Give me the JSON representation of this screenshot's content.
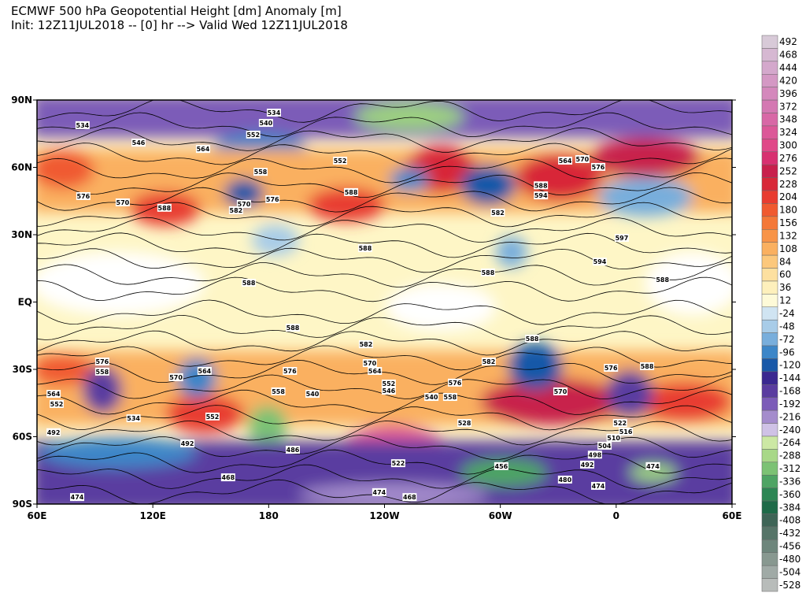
{
  "header": {
    "title": "ECMWF 500 hPa Geopotential Height [dm] Anomaly [m]",
    "subtitle": "Init: 12Z11JUL2018 -- [0] hr --> Valid Wed 12Z11JUL2018"
  },
  "map": {
    "xlim": [
      60,
      420
    ],
    "ylim": [
      -90,
      90
    ],
    "xticks": [
      {
        "value": 60,
        "label": "60E"
      },
      {
        "value": 120,
        "label": "120E"
      },
      180,
      {
        "value": 240,
        "label": "120W"
      },
      {
        "value": 300,
        "label": "60W"
      },
      {
        "value": 360,
        "label": "0"
      },
      {
        "value": 420,
        "label": "60E"
      }
    ],
    "yticks": [
      {
        "value": 90,
        "label": "90N"
      },
      {
        "value": 60,
        "label": "60N"
      },
      {
        "value": 30,
        "label": "30N"
      },
      {
        "value": 0,
        "label": "EQ"
      },
      {
        "value": -30,
        "label": "30S"
      },
      {
        "value": -60,
        "label": "60S"
      },
      {
        "value": -90,
        "label": "90S"
      }
    ],
    "contour_labels": [
      {
        "value": 534,
        "lon": 182.7,
        "lat": 84.4
      },
      {
        "value": 534,
        "lon": 83.6,
        "lat": 78.8
      },
      {
        "value": 540,
        "lon": 178.6,
        "lat": 79.8
      },
      {
        "value": 546,
        "lon": 112.6,
        "lat": 71
      },
      {
        "value": 552,
        "lon": 172,
        "lat": 74.6
      },
      {
        "value": 564,
        "lon": 146,
        "lat": 68.2
      },
      {
        "value": 552,
        "lon": 217,
        "lat": 63
      },
      {
        "value": 558,
        "lon": 175.8,
        "lat": 58
      },
      {
        "value": 588,
        "lon": 222.7,
        "lat": 49
      },
      {
        "value": 570,
        "lon": 167.2,
        "lat": 43.7
      },
      {
        "value": 576,
        "lon": 182,
        "lat": 45.8
      },
      {
        "value": 582,
        "lon": 163.1,
        "lat": 40.9
      },
      {
        "value": 576,
        "lon": 84,
        "lat": 47.2
      },
      {
        "value": 570,
        "lon": 104.4,
        "lat": 44.4
      },
      {
        "value": 588,
        "lon": 126,
        "lat": 42
      },
      {
        "value": 588,
        "lon": 230,
        "lat": 24
      },
      {
        "value": 588,
        "lon": 169.7,
        "lat": 8.6
      },
      {
        "value": 588,
        "lon": 293.6,
        "lat": 13.2
      },
      {
        "value": 582,
        "lon": 298.7,
        "lat": 39.8
      },
      {
        "value": 588,
        "lon": 321,
        "lat": 52
      },
      {
        "value": 594,
        "lon": 321,
        "lat": 47.5
      },
      {
        "value": 564,
        "lon": 333.6,
        "lat": 63
      },
      {
        "value": 570,
        "lon": 342.5,
        "lat": 63.7
      },
      {
        "value": 576,
        "lon": 350.7,
        "lat": 60.2
      },
      {
        "value": 597,
        "lon": 362.9,
        "lat": 28.6
      },
      {
        "value": 594,
        "lon": 351.5,
        "lat": 18
      },
      {
        "value": 588,
        "lon": 384,
        "lat": 10
      },
      {
        "value": 588,
        "lon": 192.5,
        "lat": -11.4
      },
      {
        "value": 582,
        "lon": 230.4,
        "lat": -18.8
      },
      {
        "value": 570,
        "lon": 232.4,
        "lat": -27.2
      },
      {
        "value": 564,
        "lon": 235,
        "lat": -30.7
      },
      {
        "value": 576,
        "lon": 191,
        "lat": -30.7
      },
      {
        "value": 564,
        "lon": 146.8,
        "lat": -30.7
      },
      {
        "value": 570,
        "lon": 132,
        "lat": -33.5
      },
      {
        "value": 576,
        "lon": 93.8,
        "lat": -26.5
      },
      {
        "value": 558,
        "lon": 93.8,
        "lat": -31
      },
      {
        "value": 564,
        "lon": 68.6,
        "lat": -40.9
      },
      {
        "value": 552,
        "lon": 70.2,
        "lat": -45.4
      },
      {
        "value": 558,
        "lon": 185,
        "lat": -39.8
      },
      {
        "value": 540,
        "lon": 202.7,
        "lat": -40.9
      },
      {
        "value": 552,
        "lon": 242.2,
        "lat": -36.3
      },
      {
        "value": 546,
        "lon": 242.2,
        "lat": -39.5
      },
      {
        "value": 540,
        "lon": 264.3,
        "lat": -42.3
      },
      {
        "value": 576,
        "lon": 276.5,
        "lat": -35.9
      },
      {
        "value": 558,
        "lon": 274,
        "lat": -42.3
      },
      {
        "value": 528,
        "lon": 281.4,
        "lat": -53.9
      },
      {
        "value": 588,
        "lon": 316.5,
        "lat": -16.3
      },
      {
        "value": 582,
        "lon": 294,
        "lat": -26.5
      },
      {
        "value": 570,
        "lon": 331.1,
        "lat": -39.8
      },
      {
        "value": 576,
        "lon": 357.3,
        "lat": -29.3
      },
      {
        "value": 588,
        "lon": 376,
        "lat": -28.6
      },
      {
        "value": 522,
        "lon": 362,
        "lat": -53.9
      },
      {
        "value": 516,
        "lon": 365,
        "lat": -57.7
      },
      {
        "value": 510,
        "lon": 358.7,
        "lat": -60.5
      },
      {
        "value": 504,
        "lon": 354,
        "lat": -64
      },
      {
        "value": 498,
        "lon": 349,
        "lat": -68
      },
      {
        "value": 492,
        "lon": 345,
        "lat": -72.4
      },
      {
        "value": 480,
        "lon": 333.5,
        "lat": -79.1
      },
      {
        "value": 474,
        "lon": 350.7,
        "lat": -81.9
      },
      {
        "value": 474,
        "lon": 379,
        "lat": -73.1
      },
      {
        "value": 456,
        "lon": 300.5,
        "lat": -73.1
      },
      {
        "value": 552,
        "lon": 150.9,
        "lat": -51
      },
      {
        "value": 534,
        "lon": 110,
        "lat": -51.8
      },
      {
        "value": 492,
        "lon": 68.6,
        "lat": -58
      },
      {
        "value": 492,
        "lon": 137.9,
        "lat": -63
      },
      {
        "value": 486,
        "lon": 192.5,
        "lat": -65.8
      },
      {
        "value": 522,
        "lon": 247.1,
        "lat": -71.8
      },
      {
        "value": 468,
        "lon": 159,
        "lat": -78.1
      },
      {
        "value": 474,
        "lon": 80.8,
        "lat": -86.9
      },
      {
        "value": 474,
        "lon": 237.3,
        "lat": -84.7
      },
      {
        "value": 468,
        "lon": 253,
        "lat": -86.9
      }
    ]
  },
  "colorbar": [
    {
      "value": 492,
      "color": "#d8cad8"
    },
    {
      "value": 468,
      "color": "#d6b8d2"
    },
    {
      "value": 444,
      "color": "#d4a8cc"
    },
    {
      "value": 420,
      "color": "#d498c4"
    },
    {
      "value": 396,
      "color": "#d488bc"
    },
    {
      "value": 372,
      "color": "#d478b2"
    },
    {
      "value": 348,
      "color": "#d868a6"
    },
    {
      "value": 324,
      "color": "#dc5898"
    },
    {
      "value": 300,
      "color": "#e04888"
    },
    {
      "value": 276,
      "color": "#d83070"
    },
    {
      "value": 252,
      "color": "#c8204c"
    },
    {
      "value": 228,
      "color": "#d82838"
    },
    {
      "value": 204,
      "color": "#e83c30"
    },
    {
      "value": 180,
      "color": "#f05a30"
    },
    {
      "value": 156,
      "color": "#f47838"
    },
    {
      "value": 132,
      "color": "#f89448"
    },
    {
      "value": 108,
      "color": "#fab060"
    },
    {
      "value": 84,
      "color": "#fcc87c"
    },
    {
      "value": 60,
      "color": "#fde0a0"
    },
    {
      "value": 36,
      "color": "#fef0bc"
    },
    {
      "value": 12,
      "color": "#fefad8"
    },
    {
      "value": -24,
      "color": "#d0e4f2"
    },
    {
      "value": -48,
      "color": "#a8cce8"
    },
    {
      "value": -72,
      "color": "#78aedc"
    },
    {
      "value": -96,
      "color": "#3c86c8"
    },
    {
      "value": -120,
      "color": "#1858a8"
    },
    {
      "value": -144,
      "color": "#3a2890"
    },
    {
      "value": -168,
      "color": "#5a3ca0"
    },
    {
      "value": -192,
      "color": "#7c5cb8"
    },
    {
      "value": -216,
      "color": "#a48ccc"
    },
    {
      "value": -240,
      "color": "#cfc2e6"
    },
    {
      "value": -264,
      "color": "#cce8a4"
    },
    {
      "value": -288,
      "color": "#a8d888"
    },
    {
      "value": -312,
      "color": "#7cc274"
    },
    {
      "value": -336,
      "color": "#4ea464"
    },
    {
      "value": -360,
      "color": "#2c8654"
    },
    {
      "value": -384,
      "color": "#1e6a48"
    },
    {
      "value": -408,
      "color": "#3e6456"
    },
    {
      "value": -432,
      "color": "#567468"
    },
    {
      "value": -456,
      "color": "#6e867c"
    },
    {
      "value": -480,
      "color": "#889890"
    },
    {
      "value": -504,
      "color": "#a0aaa6"
    },
    {
      "value": -528,
      "color": "#b8bcba"
    }
  ]
}
